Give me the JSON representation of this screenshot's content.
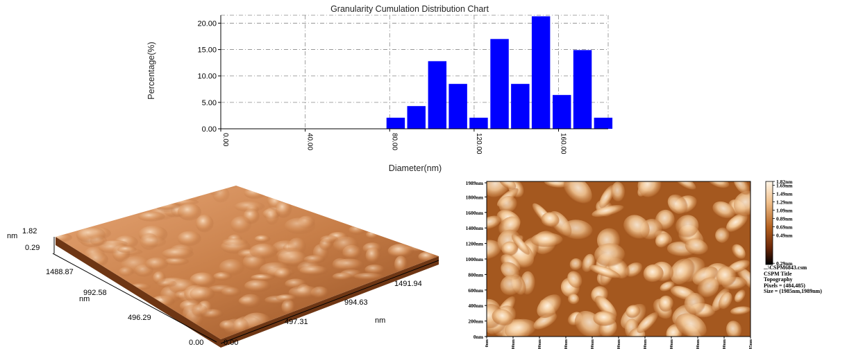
{
  "colors": {
    "bar": "#0000ff",
    "grid": "#888888",
    "afm_dark": "#2a0800",
    "afm_mid": "#b4611f",
    "afm_light": "#fff6e8"
  },
  "chart_data": [
    {
      "type": "bar",
      "title": "Granularity Cumulation Distribution  Chart",
      "xlabel": "Diameter(nm)",
      "ylabel": "Percentage(%)",
      "xlim": [
        0,
        183.5
      ],
      "ylim": [
        0,
        21.5
      ],
      "bin_width": 8.7,
      "yticks": [
        "0.00",
        "5.00",
        "10.00",
        "15.00",
        "20.00"
      ],
      "xticks": [
        "0.00",
        "40.00",
        "80.00",
        "120.00",
        "160.00"
      ],
      "grid": true,
      "bars": [
        {
          "x": 78.5,
          "value": 2.1
        },
        {
          "x": 88.3,
          "value": 4.3
        },
        {
          "x": 98.2,
          "value": 12.8
        },
        {
          "x": 108.0,
          "value": 8.5
        },
        {
          "x": 117.8,
          "value": 2.1
        },
        {
          "x": 127.7,
          "value": 17.0
        },
        {
          "x": 137.5,
          "value": 8.5
        },
        {
          "x": 147.3,
          "value": 21.3
        },
        {
          "x": 157.2,
          "value": 6.4
        },
        {
          "x": 167.0,
          "value": 14.9
        },
        {
          "x": 176.8,
          "value": 2.1
        }
      ]
    },
    {
      "type": "surface",
      "z_unit": "nm",
      "z_max": "1.82",
      "z_min": "0.29",
      "y_unit": "nm",
      "x_unit": "nm",
      "y_ticks": [
        "1488.87",
        "992.58",
        "496.29",
        "0.00"
      ],
      "x_ticks": [
        "0.00",
        "497.31",
        "994.63",
        "1491.94"
      ]
    },
    {
      "type": "heatmap",
      "y_ticks": [
        "1989nm",
        "1800nm",
        "1600nm",
        "1400nm",
        "1200nm",
        "1000nm",
        "800nm",
        "600nm",
        "400nm",
        "200nm",
        "0nm"
      ],
      "x_ticks": [
        "0nm",
        "200nm",
        "400nm",
        "600nm",
        "800nm",
        "1000nm",
        "1200nm",
        "1400nm",
        "1600nm",
        "1800nm",
        "1985nm"
      ],
      "colorbar_ticks": [
        "1.82nm",
        "1.69nm",
        "1.49nm",
        "1.29nm",
        "1.09nm",
        "0.89nm",
        "0.69nm",
        "0.49nm",
        "0.29nm"
      ],
      "info": [
        "...\\CSPM6843.csm",
        "CSPM Title",
        "Topography",
        "Pixels = (484,485)",
        "Size = (1985nm,1989nm)"
      ]
    }
  ]
}
